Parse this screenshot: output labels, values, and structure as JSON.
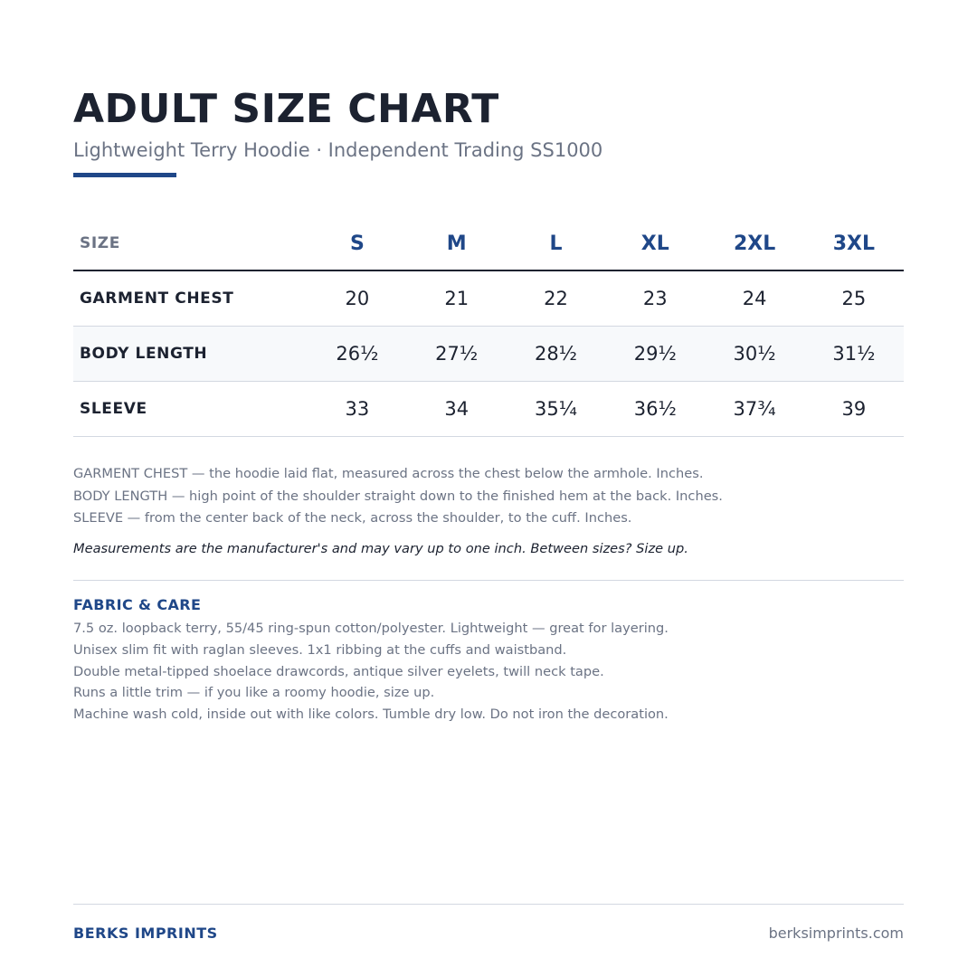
{
  "header": {
    "title": "ADULT SIZE CHART",
    "subtitle": "Lightweight Terry Hoodie  ·  Independent Trading SS1000"
  },
  "size_table": {
    "header_label": "SIZE",
    "sizes": [
      "S",
      "M",
      "L",
      "XL",
      "2XL",
      "3XL"
    ],
    "rows": [
      {
        "label": "GARMENT CHEST",
        "values": [
          "20",
          "21",
          "22",
          "23",
          "24",
          "25"
        ]
      },
      {
        "label": "BODY LENGTH",
        "values": [
          "26½",
          "27½",
          "28½",
          "29½",
          "30½",
          "31½"
        ]
      },
      {
        "label": "SLEEVE",
        "values": [
          "33",
          "34",
          "35¼",
          "36½",
          "37¾",
          "39"
        ]
      }
    ]
  },
  "definitions": [
    "GARMENT CHEST — the hoodie laid flat, measured across the chest below the armhole. Inches.",
    "BODY LENGTH — high point of the shoulder straight down to the finished hem at the back. Inches.",
    "SLEEVE — from the center back of the neck, across the shoulder, to the cuff. Inches."
  ],
  "note": "Measurements are the manufacturer's and may vary up to one inch. Between sizes? Size up.",
  "fabric_care": {
    "heading": "FABRIC & CARE",
    "lines": [
      "7.5 oz. loopback terry, 55/45 ring-spun cotton/polyester. Lightweight — great for layering.",
      "Unisex slim fit with raglan sleeves. 1x1 ribbing at the cuffs and waistband.",
      "Double metal-tipped shoelace drawcords, antique silver eyelets, twill neck tape.",
      "Runs a little trim — if you like a roomy hoodie, size up.",
      "Machine wash cold, inside out with like colors. Tumble dry low. Do not iron the decoration."
    ]
  },
  "footer": {
    "brand": "BERKS IMPRINTS",
    "website": "berksimprints.com"
  },
  "colors": {
    "accent": "#1f4788",
    "text": "#1c2230",
    "muted": "#6b7384",
    "rule": "#d3d8e1",
    "row_shade": "#f7f9fb"
  }
}
